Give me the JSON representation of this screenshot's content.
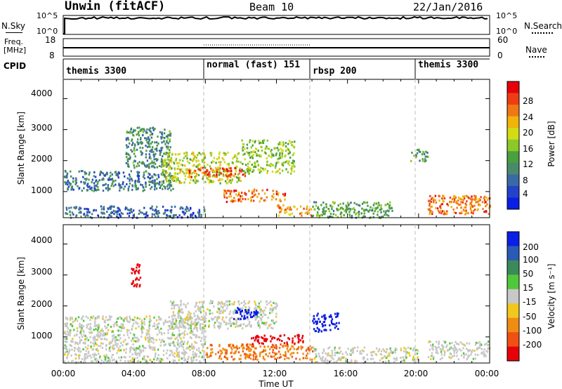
{
  "header": {
    "station": "Unwin (fitACF)",
    "beam": "Beam 10",
    "date": "22/Jan/2016"
  },
  "nsky_panel": {
    "left_label": "N.Sky",
    "left_ticks": [
      "10^5",
      "10^0"
    ],
    "right_ticks": [
      "10^5",
      "10^0"
    ],
    "right_label": "N.Search"
  },
  "freq_panel": {
    "left_label_1": "Freq.",
    "left_label_2": "[MHz]",
    "left_ticks": [
      "18",
      "8"
    ],
    "right_ticks": [
      "60",
      "0"
    ],
    "right_label": "Nave"
  },
  "cpid_panel": {
    "label": "CPID",
    "segments": [
      "themis 3300",
      "normal (fast) 151",
      "rbsp 200",
      "themis 3300"
    ]
  },
  "x_axis": {
    "title": "Time UT",
    "ticks": [
      "00:00",
      "04:00",
      "08:00",
      "12:00",
      "16:00",
      "20:00",
      "00:00"
    ]
  },
  "power_panel": {
    "ylabel": "Slant Range [km]",
    "yticks": [
      "4000",
      "3000",
      "2000",
      "1000"
    ],
    "colorbar_label": "Power [dB]",
    "colorbar_ticks": [
      "28",
      "24",
      "20",
      "16",
      "12",
      "8",
      "4"
    ],
    "colors": [
      "#0a1ee6",
      "#2342c8",
      "#3a6aa6",
      "#4a8a6a",
      "#4aa03c",
      "#8cc828",
      "#d2dc14",
      "#f0b40a",
      "#f07814",
      "#f03c14",
      "#e6000a"
    ]
  },
  "velocity_panel": {
    "ylabel": "Slant Range [km]",
    "yticks": [
      "4000",
      "3000",
      "2000",
      "1000"
    ],
    "colorbar_label": "Velocity [m s⁻¹]",
    "colorbar_ticks": [
      "200",
      "100",
      "50",
      "15",
      "-15",
      "-50",
      "-100",
      "-200"
    ],
    "colors": [
      "#0a1ee6",
      "#2a5ab4",
      "#3c8a5a",
      "#50c83c",
      "#c8c8c8",
      "#f0c81e",
      "#f08c14",
      "#f05014",
      "#e6000a"
    ]
  },
  "chart_data": {
    "type": "heatmap",
    "title": "Unwin (fitACF)",
    "xlabel": "Time UT",
    "ylabel": "Slant Range [km]",
    "xlim": [
      "00:00",
      "24:00"
    ],
    "ylim": [
      180,
      4600
    ],
    "mode_changes_ut": [
      "08:00",
      "14:00",
      "20:00"
    ],
    "panels": [
      {
        "name": "Power",
        "unit": "dB",
        "colorbar_range": [
          0,
          32
        ],
        "echo_regions": [
          {
            "t_start_h": 0.0,
            "t_end_h": 6.2,
            "range_km": [
              1050,
              1700
            ],
            "value": 8
          },
          {
            "t_start_h": 0.0,
            "t_end_h": 8.0,
            "range_km": [
              180,
              560
            ],
            "value": 6
          },
          {
            "t_start_h": 3.5,
            "t_end_h": 6.0,
            "range_km": [
              1800,
              3100
            ],
            "value": 10
          },
          {
            "t_start_h": 5.5,
            "t_end_h": 10.0,
            "range_km": [
              1300,
              2300
            ],
            "value": 18
          },
          {
            "t_start_h": 7.0,
            "t_end_h": 10.2,
            "range_km": [
              1500,
              1800
            ],
            "value": 28
          },
          {
            "t_start_h": 9.0,
            "t_end_h": 12.5,
            "range_km": [
              700,
              1100
            ],
            "value": 26
          },
          {
            "t_start_h": 10.0,
            "t_end_h": 13.0,
            "range_km": [
              1600,
              2700
            ],
            "value": 16
          },
          {
            "t_start_h": 12.0,
            "t_end_h": 14.0,
            "range_km": [
              250,
              600
            ],
            "value": 24
          },
          {
            "t_start_h": 14.0,
            "t_end_h": 18.5,
            "range_km": [
              180,
              700
            ],
            "value": 12
          },
          {
            "t_start_h": 19.5,
            "t_end_h": 20.5,
            "range_km": [
              2000,
              2400
            ],
            "value": 12
          },
          {
            "t_start_h": 20.5,
            "t_end_h": 24.0,
            "range_km": [
              300,
              900
            ],
            "value": 26
          }
        ]
      },
      {
        "name": "Velocity",
        "unit": "m s^-1",
        "colorbar_range": [
          -200,
          200
        ],
        "echo_regions": [
          {
            "t_start_h": 0.0,
            "t_end_h": 8.0,
            "range_km": [
              180,
              1700
            ],
            "value": 0
          },
          {
            "t_start_h": 3.8,
            "t_end_h": 4.3,
            "range_km": [
              2600,
              3400
            ],
            "value": -200
          },
          {
            "t_start_h": 6.0,
            "t_end_h": 12.0,
            "range_km": [
              1300,
              2200
            ],
            "value": 0
          },
          {
            "t_start_h": 9.5,
            "t_end_h": 11.0,
            "range_km": [
              1600,
              2000
            ],
            "value": 200
          },
          {
            "t_start_h": 8.0,
            "t_end_h": 14.0,
            "range_km": [
              300,
              800
            ],
            "value": -70
          },
          {
            "t_start_h": 10.5,
            "t_end_h": 13.5,
            "range_km": [
              800,
              1100
            ],
            "value": -200
          },
          {
            "t_start_h": 14.0,
            "t_end_h": 15.5,
            "range_km": [
              1200,
              1800
            ],
            "value": 200
          },
          {
            "t_start_h": 14.0,
            "t_end_h": 20.0,
            "range_km": [
              180,
              700
            ],
            "value": 0
          },
          {
            "t_start_h": 20.5,
            "t_end_h": 24.0,
            "range_km": [
              300,
              900
            ],
            "value": 0
          }
        ]
      }
    ]
  }
}
